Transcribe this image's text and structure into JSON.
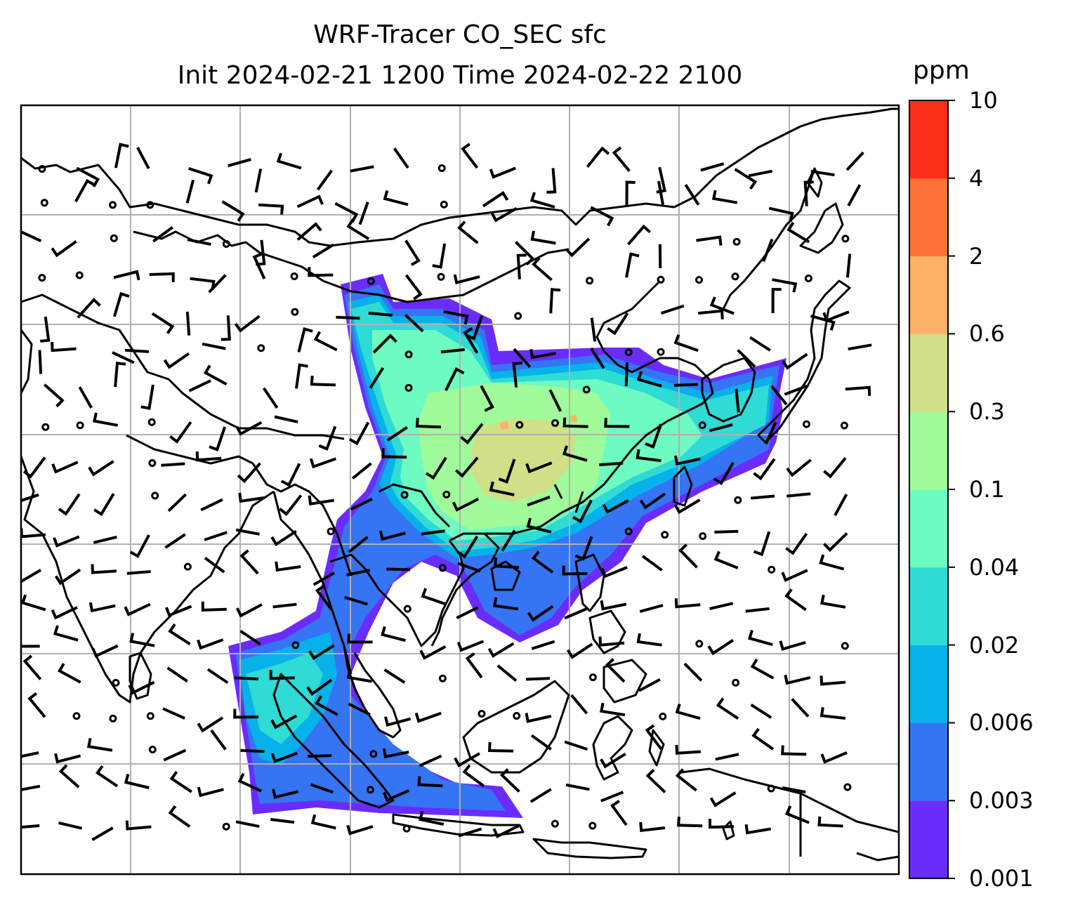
{
  "title": {
    "line1": "WRF-Tracer CO_SEC sfc",
    "line2": "Init 2024-02-21 1200 Time 2024-02-22 2100"
  },
  "colorbar": {
    "unit": "ppm",
    "levels": [
      "0.001",
      "0.003",
      "0.006",
      "0.02",
      "0.04",
      "0.1",
      "0.3",
      "0.6",
      "2",
      "4",
      "10"
    ],
    "colors": [
      "#6a2cfb",
      "#3574f3",
      "#07b1ea",
      "#2edbd5",
      "#6efbc1",
      "#a0fb9a",
      "#d0df88",
      "#fdb067",
      "#fe7138",
      "#fa2d18"
    ]
  },
  "map": {
    "gridlines": true,
    "background": "#ffffff",
    "coastline_color": "#000000",
    "grid_color": "#b0b0b0",
    "wind_barbs": true
  }
}
